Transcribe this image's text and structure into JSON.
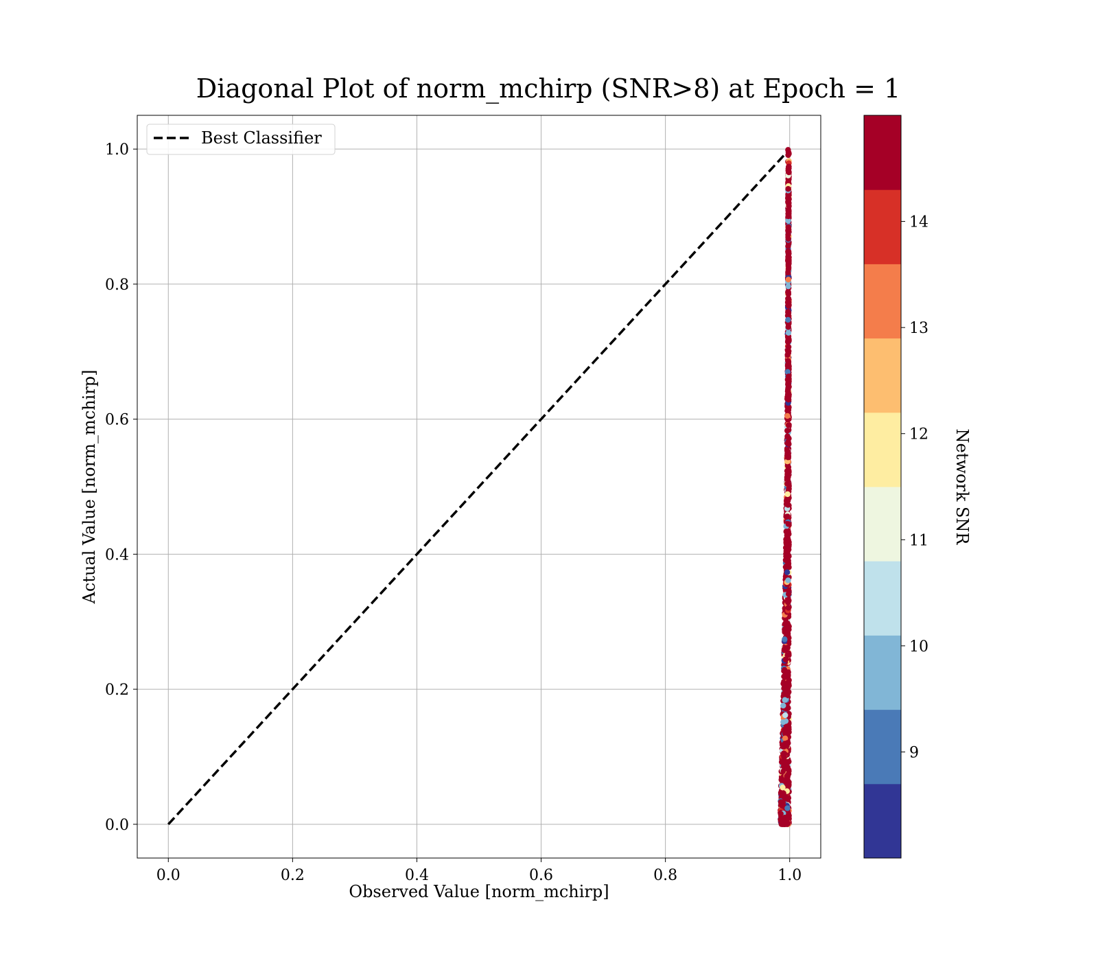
{
  "chart_data": {
    "type": "scatter",
    "title": "Diagonal Plot of norm_mchirp (SNR>8) at Epoch = 1",
    "xlabel": "Observed Value [norm_mchirp]",
    "ylabel": "Actual Value [norm_mchirp]",
    "xlim": [
      -0.05,
      1.05
    ],
    "ylim": [
      -0.05,
      1.05
    ],
    "xticks": [
      0.0,
      0.2,
      0.4,
      0.6,
      0.8,
      1.0
    ],
    "yticks": [
      0.0,
      0.2,
      0.4,
      0.6,
      0.8,
      1.0
    ],
    "xtick_labels": [
      "0.0",
      "0.2",
      "0.4",
      "0.6",
      "0.8",
      "1.0"
    ],
    "ytick_labels": [
      "0.0",
      "0.2",
      "0.4",
      "0.6",
      "0.8",
      "1.0"
    ],
    "grid": true,
    "legend": {
      "placement": "upper-left",
      "entries": [
        {
          "label": "Best Classifier",
          "style": "dashed",
          "color": "#000000"
        }
      ]
    },
    "reference_line": {
      "name": "Best Classifier",
      "x": [
        0.0,
        1.0
      ],
      "y": [
        0.0,
        1.0
      ]
    },
    "scatter_cluster": {
      "description_x_range": [
        0.984,
        1.0
      ],
      "y_range": [
        0.0,
        1.0
      ],
      "dominant_color": "#a50026"
    },
    "colorbar": {
      "label": "Network SNR",
      "range": [
        8.0,
        15.0
      ],
      "ticks": [
        9,
        10,
        11,
        12,
        13,
        14
      ],
      "tick_labels": [
        "9",
        "10",
        "11",
        "12",
        "13",
        "14"
      ],
      "bins": [
        {
          "from": 8.0,
          "to": 8.7,
          "color": "#313695"
        },
        {
          "from": 8.7,
          "to": 9.4,
          "color": "#4a7ab7"
        },
        {
          "from": 9.4,
          "to": 10.1,
          "color": "#81b6d6"
        },
        {
          "from": 10.1,
          "to": 10.8,
          "color": "#bfe1eb"
        },
        {
          "from": 10.8,
          "to": 11.5,
          "color": "#eef6e0"
        },
        {
          "from": 11.5,
          "to": 12.2,
          "color": "#feeda1"
        },
        {
          "from": 12.2,
          "to": 12.9,
          "color": "#fdbe70"
        },
        {
          "from": 12.9,
          "to": 13.6,
          "color": "#f47d4b"
        },
        {
          "from": 13.6,
          "to": 14.3,
          "color": "#d73027"
        },
        {
          "from": 14.3,
          "to": 15.0,
          "color": "#a50026"
        }
      ]
    }
  }
}
